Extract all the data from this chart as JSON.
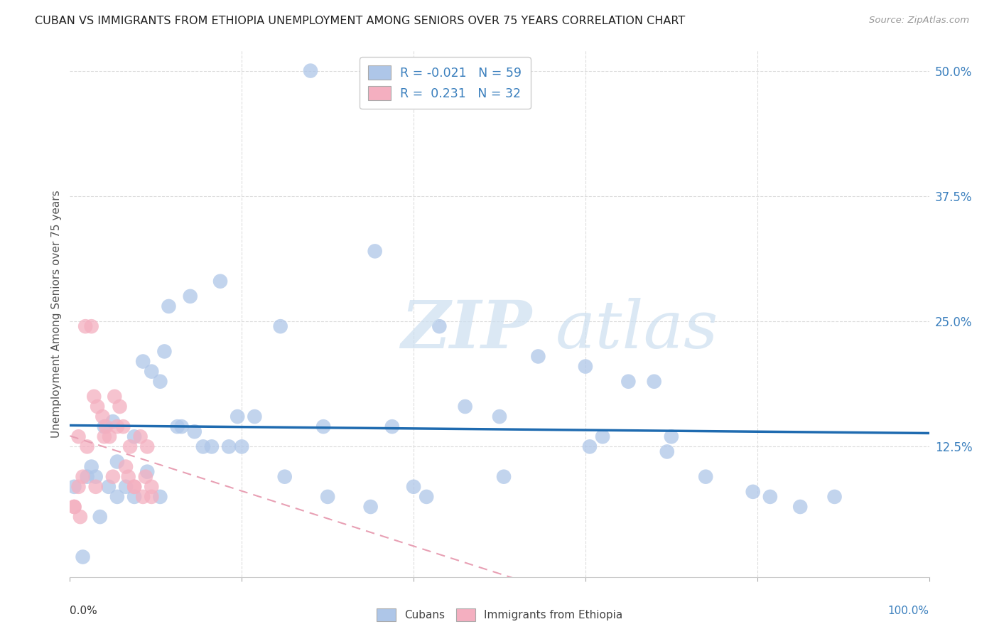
{
  "title": "CUBAN VS IMMIGRANTS FROM ETHIOPIA UNEMPLOYMENT AMONG SENIORS OVER 75 YEARS CORRELATION CHART",
  "source": "Source: ZipAtlas.com",
  "ylabel": "Unemployment Among Seniors over 75 years",
  "xlim": [
    0,
    1.0
  ],
  "ylim": [
    -0.005,
    0.52
  ],
  "yticks": [
    0.125,
    0.25,
    0.375,
    0.5
  ],
  "ytick_labels": [
    "12.5%",
    "25.0%",
    "37.5%",
    "50.0%"
  ],
  "xtick_label_left": "0.0%",
  "xtick_label_right": "100.0%",
  "legend_r_cuban": "-0.021",
  "legend_n_cuban": "59",
  "legend_r_ethiopia": "0.231",
  "legend_n_ethiopia": "32",
  "cuban_color": "#aec6e8",
  "ethiopia_color": "#f4afc0",
  "trendline_cuban_color": "#1f6bb0",
  "trendline_ethiopia_color": "#e8a0b4",
  "cuban_x": [
    0.28,
    0.015,
    0.075,
    0.105,
    0.04,
    0.055,
    0.025,
    0.02,
    0.005,
    0.05,
    0.095,
    0.085,
    0.115,
    0.14,
    0.175,
    0.11,
    0.13,
    0.155,
    0.195,
    0.215,
    0.245,
    0.295,
    0.355,
    0.375,
    0.4,
    0.43,
    0.46,
    0.5,
    0.545,
    0.6,
    0.62,
    0.65,
    0.68,
    0.7,
    0.74,
    0.795,
    0.85,
    0.89,
    0.03,
    0.045,
    0.065,
    0.075,
    0.09,
    0.105,
    0.125,
    0.145,
    0.165,
    0.185,
    0.2,
    0.25,
    0.3,
    0.35,
    0.415,
    0.505,
    0.605,
    0.695,
    0.815,
    0.035,
    0.055
  ],
  "cuban_y": [
    0.5,
    0.015,
    0.135,
    0.19,
    0.145,
    0.11,
    0.105,
    0.095,
    0.085,
    0.15,
    0.2,
    0.21,
    0.265,
    0.275,
    0.29,
    0.22,
    0.145,
    0.125,
    0.155,
    0.155,
    0.245,
    0.145,
    0.32,
    0.145,
    0.085,
    0.245,
    0.165,
    0.155,
    0.215,
    0.205,
    0.135,
    0.19,
    0.19,
    0.135,
    0.095,
    0.08,
    0.065,
    0.075,
    0.095,
    0.085,
    0.085,
    0.075,
    0.1,
    0.075,
    0.145,
    0.14,
    0.125,
    0.125,
    0.125,
    0.095,
    0.075,
    0.065,
    0.075,
    0.095,
    0.125,
    0.12,
    0.075,
    0.055,
    0.075
  ],
  "ethiopia_x": [
    0.005,
    0.012,
    0.018,
    0.025,
    0.028,
    0.032,
    0.038,
    0.042,
    0.046,
    0.05,
    0.052,
    0.058,
    0.062,
    0.068,
    0.07,
    0.075,
    0.082,
    0.088,
    0.09,
    0.095,
    0.01,
    0.015,
    0.02,
    0.03,
    0.04,
    0.055,
    0.065,
    0.075,
    0.085,
    0.095,
    0.005,
    0.01
  ],
  "ethiopia_y": [
    0.065,
    0.055,
    0.245,
    0.245,
    0.175,
    0.165,
    0.155,
    0.145,
    0.135,
    0.095,
    0.175,
    0.165,
    0.145,
    0.095,
    0.125,
    0.085,
    0.135,
    0.095,
    0.125,
    0.085,
    0.135,
    0.095,
    0.125,
    0.085,
    0.135,
    0.145,
    0.105,
    0.085,
    0.075,
    0.075,
    0.065,
    0.085
  ],
  "grid_color": "#dddddd",
  "spine_color": "#cccccc"
}
